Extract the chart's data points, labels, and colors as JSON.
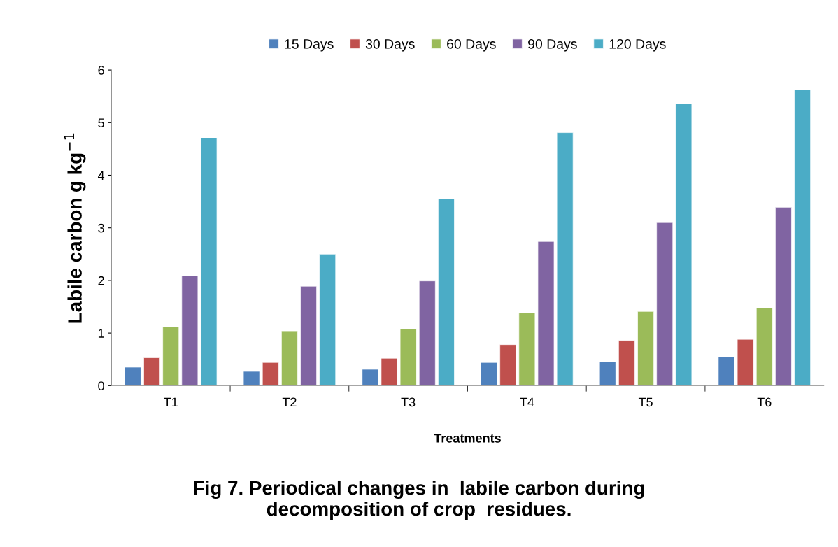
{
  "chart_data": {
    "type": "bar",
    "title": "Fig 7. Periodical changes in  labile carbon during\ndecomposition of crop  residues.",
    "xlabel": "Treatments",
    "ylabel": "Labile carbon g kg$^{−1}$",
    "categories": [
      "T1",
      "T2",
      "T3",
      "T4",
      "T5",
      "T6"
    ],
    "series": [
      {
        "name": "15 Days",
        "color": "#4f81bd",
        "values": [
          0.35,
          0.27,
          0.31,
          0.44,
          0.45,
          0.55
        ]
      },
      {
        "name": "30 Days",
        "color": "#c0504d",
        "values": [
          0.53,
          0.44,
          0.52,
          0.78,
          0.86,
          0.88
        ]
      },
      {
        "name": "60 Days",
        "color": "#9bbb59",
        "values": [
          1.12,
          1.04,
          1.08,
          1.38,
          1.41,
          1.48
        ]
      },
      {
        "name": "90 Days",
        "color": "#8064a2",
        "values": [
          2.09,
          1.89,
          1.99,
          2.74,
          3.1,
          3.39
        ]
      },
      {
        "name": "120 Days",
        "color": "#4bacc6",
        "values": [
          4.71,
          2.5,
          3.55,
          4.81,
          5.36,
          5.63
        ]
      }
    ],
    "ylim": [
      0,
      6
    ],
    "yticks": [
      0,
      1,
      2,
      3,
      4,
      5,
      6
    ],
    "grid": false,
    "legend": "top"
  }
}
